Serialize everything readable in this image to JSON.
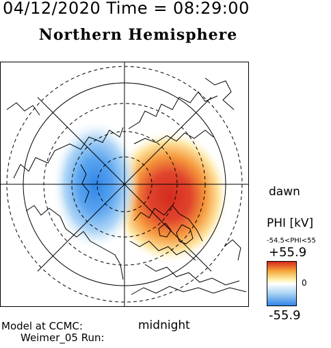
{
  "header": {
    "date_time": "04/12/2020 Time = 08:29:00",
    "hemisphere": "Northern Hemisphere"
  },
  "map": {
    "dawn_label": "dawn",
    "midnight_label": "midnight",
    "projection": "polar, magnetic local time",
    "potential_pattern": {
      "positive_cell_side": "dawn",
      "negative_cell_side": "dusk"
    }
  },
  "colorbar": {
    "quantity_label": "PHI [kV]",
    "range_label": "-54.5<PHI<55",
    "max_label": "+55.9",
    "zero_label": "0",
    "min_label": "-55.9",
    "max_value": 55.9,
    "min_value": -55.9,
    "colors": [
      "#2f82e8",
      "#a9d4f4",
      "#ffffff",
      "#fff3b0",
      "#f4a93c",
      "#d8241c"
    ]
  },
  "footer": {
    "model_label": "Model at CCMC:",
    "run_label": "Weimer_05 Run:"
  }
}
